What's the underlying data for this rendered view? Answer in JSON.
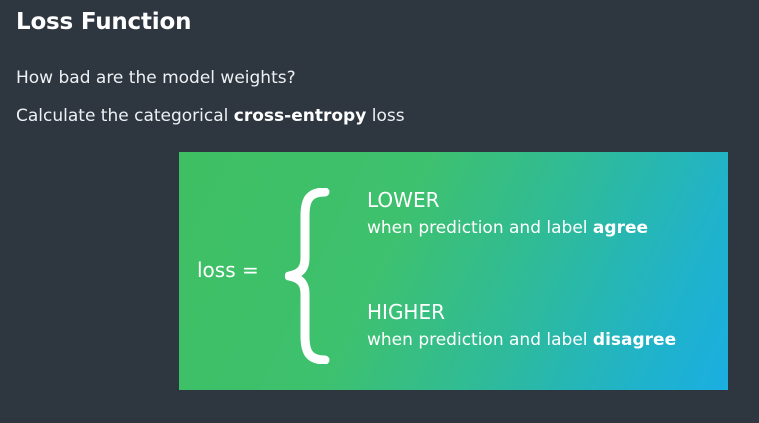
{
  "slide": {
    "title": "Loss Function",
    "bullets": {
      "question": "How bad are the model weights?",
      "calc_prefix": "Calculate the categorical ",
      "calc_bold": "cross-entropy",
      "calc_suffix": " loss"
    }
  },
  "panel": {
    "loss_label": "loss =",
    "brace_icon": "left-curly-brace",
    "lower": {
      "title": "LOWER",
      "desc_prefix": "when prediction and label ",
      "desc_bold": "agree"
    },
    "higher": {
      "title": "HIGHER",
      "desc_prefix": "when prediction and label ",
      "desc_bold": "disagree"
    },
    "gradient_colors": [
      "#3fbf63",
      "#1aaee2"
    ]
  },
  "colors": {
    "background": "#2e3640",
    "text": "#ffffff"
  }
}
